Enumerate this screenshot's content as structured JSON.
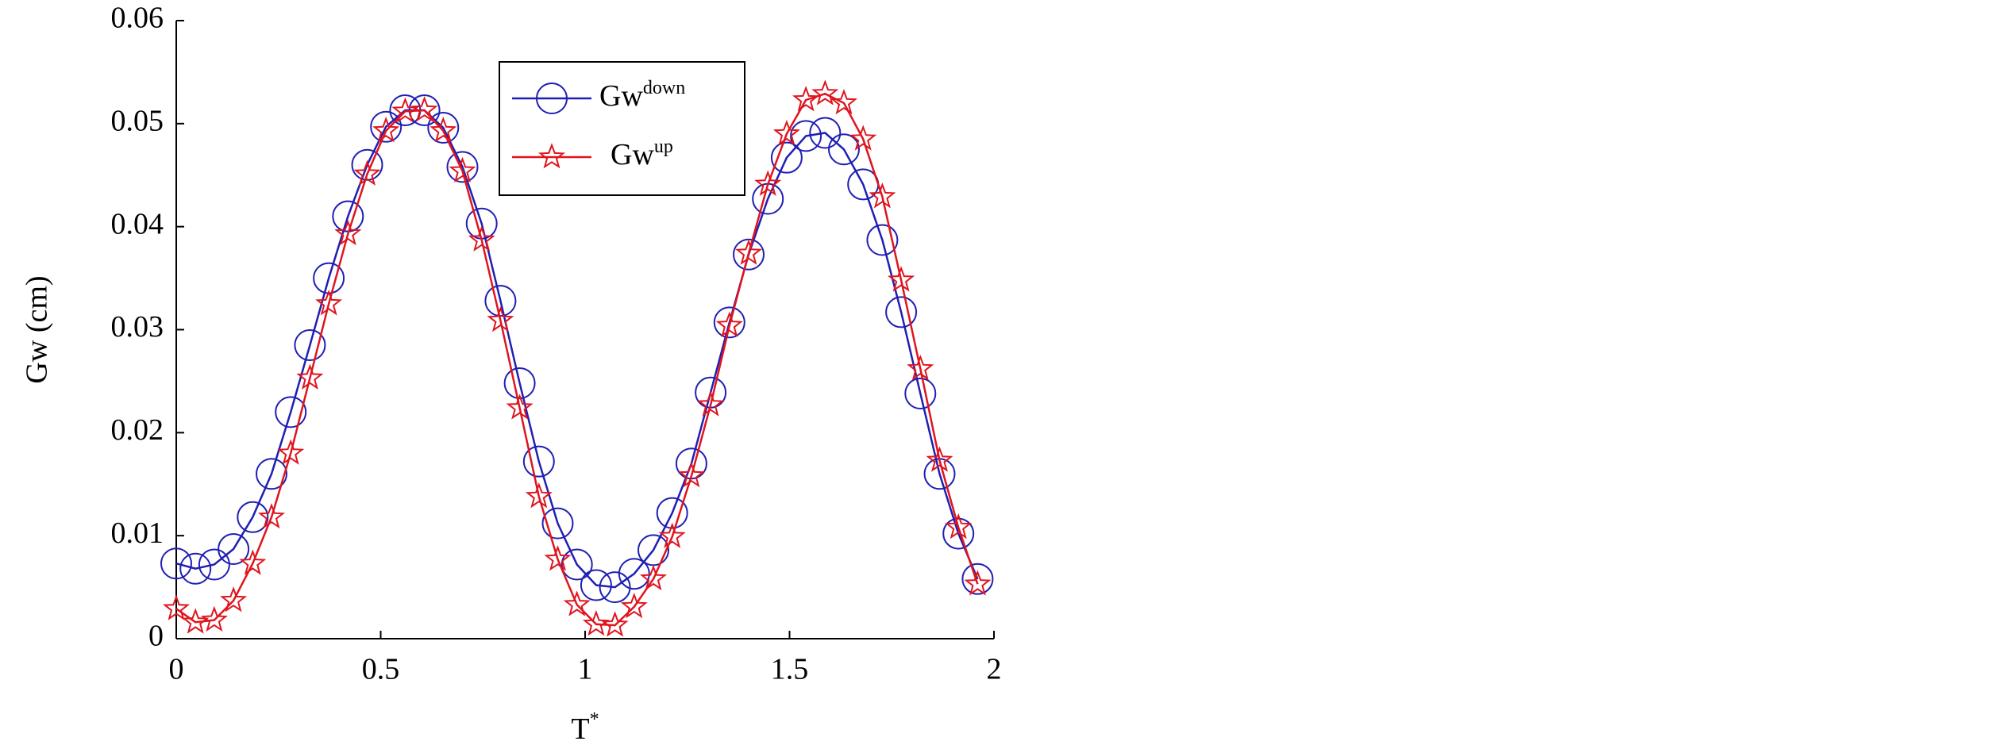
{
  "chart_data": {
    "type": "line",
    "x_label": "T",
    "x_label_sup": "*",
    "y_label": "Gw (cm)",
    "x": [
      0,
      0.047,
      0.093,
      0.14,
      0.187,
      0.233,
      0.28,
      0.327,
      0.373,
      0.42,
      0.467,
      0.513,
      0.56,
      0.607,
      0.653,
      0.7,
      0.747,
      0.793,
      0.84,
      0.887,
      0.933,
      0.98,
      1.027,
      1.073,
      1.12,
      1.167,
      1.213,
      1.26,
      1.307,
      1.353,
      1.4,
      1.447,
      1.493,
      1.54,
      1.587,
      1.633,
      1.68,
      1.727,
      1.773,
      1.82,
      1.867,
      1.913,
      1.96
    ],
    "series": [
      {
        "name": "Gw",
        "name_sup": "down",
        "color": "#1f1fb4",
        "marker": "circle",
        "values": [
          0.0073,
          0.0068,
          0.0072,
          0.0087,
          0.0118,
          0.016,
          0.022,
          0.0285,
          0.035,
          0.041,
          0.046,
          0.0497,
          0.0513,
          0.0513,
          0.0496,
          0.0458,
          0.0403,
          0.0328,
          0.0248,
          0.0172,
          0.0112,
          0.0072,
          0.0052,
          0.005,
          0.0063,
          0.0086,
          0.0122,
          0.017,
          0.0239,
          0.0307,
          0.0373,
          0.0427,
          0.0467,
          0.0488,
          0.0491,
          0.0475,
          0.0441,
          0.0387,
          0.0317,
          0.0238,
          0.016,
          0.0102,
          0.0058
        ]
      },
      {
        "name": "Gw",
        "name_sup": "up",
        "color": "#e0141e",
        "marker": "star",
        "values": [
          0.0029,
          0.0016,
          0.0018,
          0.0037,
          0.0073,
          0.0118,
          0.018,
          0.0253,
          0.0325,
          0.0393,
          0.0451,
          0.0493,
          0.0512,
          0.0513,
          0.0493,
          0.0454,
          0.0387,
          0.0309,
          0.0224,
          0.0138,
          0.0077,
          0.0033,
          0.0014,
          0.0013,
          0.0031,
          0.0058,
          0.0099,
          0.0158,
          0.0227,
          0.0304,
          0.0374,
          0.0441,
          0.049,
          0.0523,
          0.0529,
          0.052,
          0.0485,
          0.0429,
          0.0348,
          0.0262,
          0.0173,
          0.0108,
          0.0053
        ]
      }
    ],
    "xlim": [
      0,
      2
    ],
    "xticks": [
      0,
      0.5,
      1,
      1.5,
      2
    ],
    "ylim": [
      0,
      0.06
    ],
    "yticks": [
      0,
      0.01,
      0.02,
      0.03,
      0.04,
      0.05,
      0.06
    ],
    "grid": false,
    "legend": "upper center"
  }
}
